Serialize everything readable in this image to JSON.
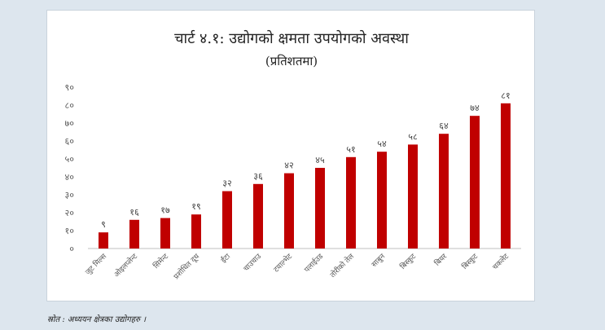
{
  "source_note": "स्रोत : अध्ययन क्षेत्रका उद्योगहरु ।",
  "chart_data": {
    "type": "bar",
    "title": "चार्ट ४.१: उद्योगको क्षमता उपयोगको अवस्था",
    "subtitle": "(प्रतिशतमा)",
    "xlabel": "",
    "ylabel": "",
    "ylim": [
      0,
      90
    ],
    "y_ticks": [
      0,
      10,
      20,
      30,
      40,
      50,
      60,
      70,
      80,
      90
    ],
    "y_tick_labels": [
      "०",
      "१०",
      "२०",
      "३०",
      "४०",
      "५०",
      "६०",
      "७०",
      "८०",
      "९०"
    ],
    "grid": false,
    "legend": "none",
    "bar_color": "#c00000",
    "categories": [
      "जुट मिल्स",
      "ओइलप्लेन्ट",
      "सिमेन्ट",
      "प्रशोधित दूध",
      "ईंटा",
      "चाउचाउ",
      "टयाल्भेट",
      "पलाईउड",
      "तोरीको तेल",
      "साबुन",
      "बिस्कुट",
      "बियर",
      "बिस्कुट",
      "चकलेट"
    ],
    "values": [
      9,
      16,
      17,
      19,
      32,
      36,
      42,
      45,
      51,
      54,
      58,
      64,
      74,
      81
    ],
    "data_labels": [
      "९",
      "१६",
      "१७",
      "१९",
      "३२",
      "३६",
      "४२",
      "४५",
      "५१",
      "५४",
      "५८",
      "६४",
      "७४",
      "८१"
    ]
  }
}
